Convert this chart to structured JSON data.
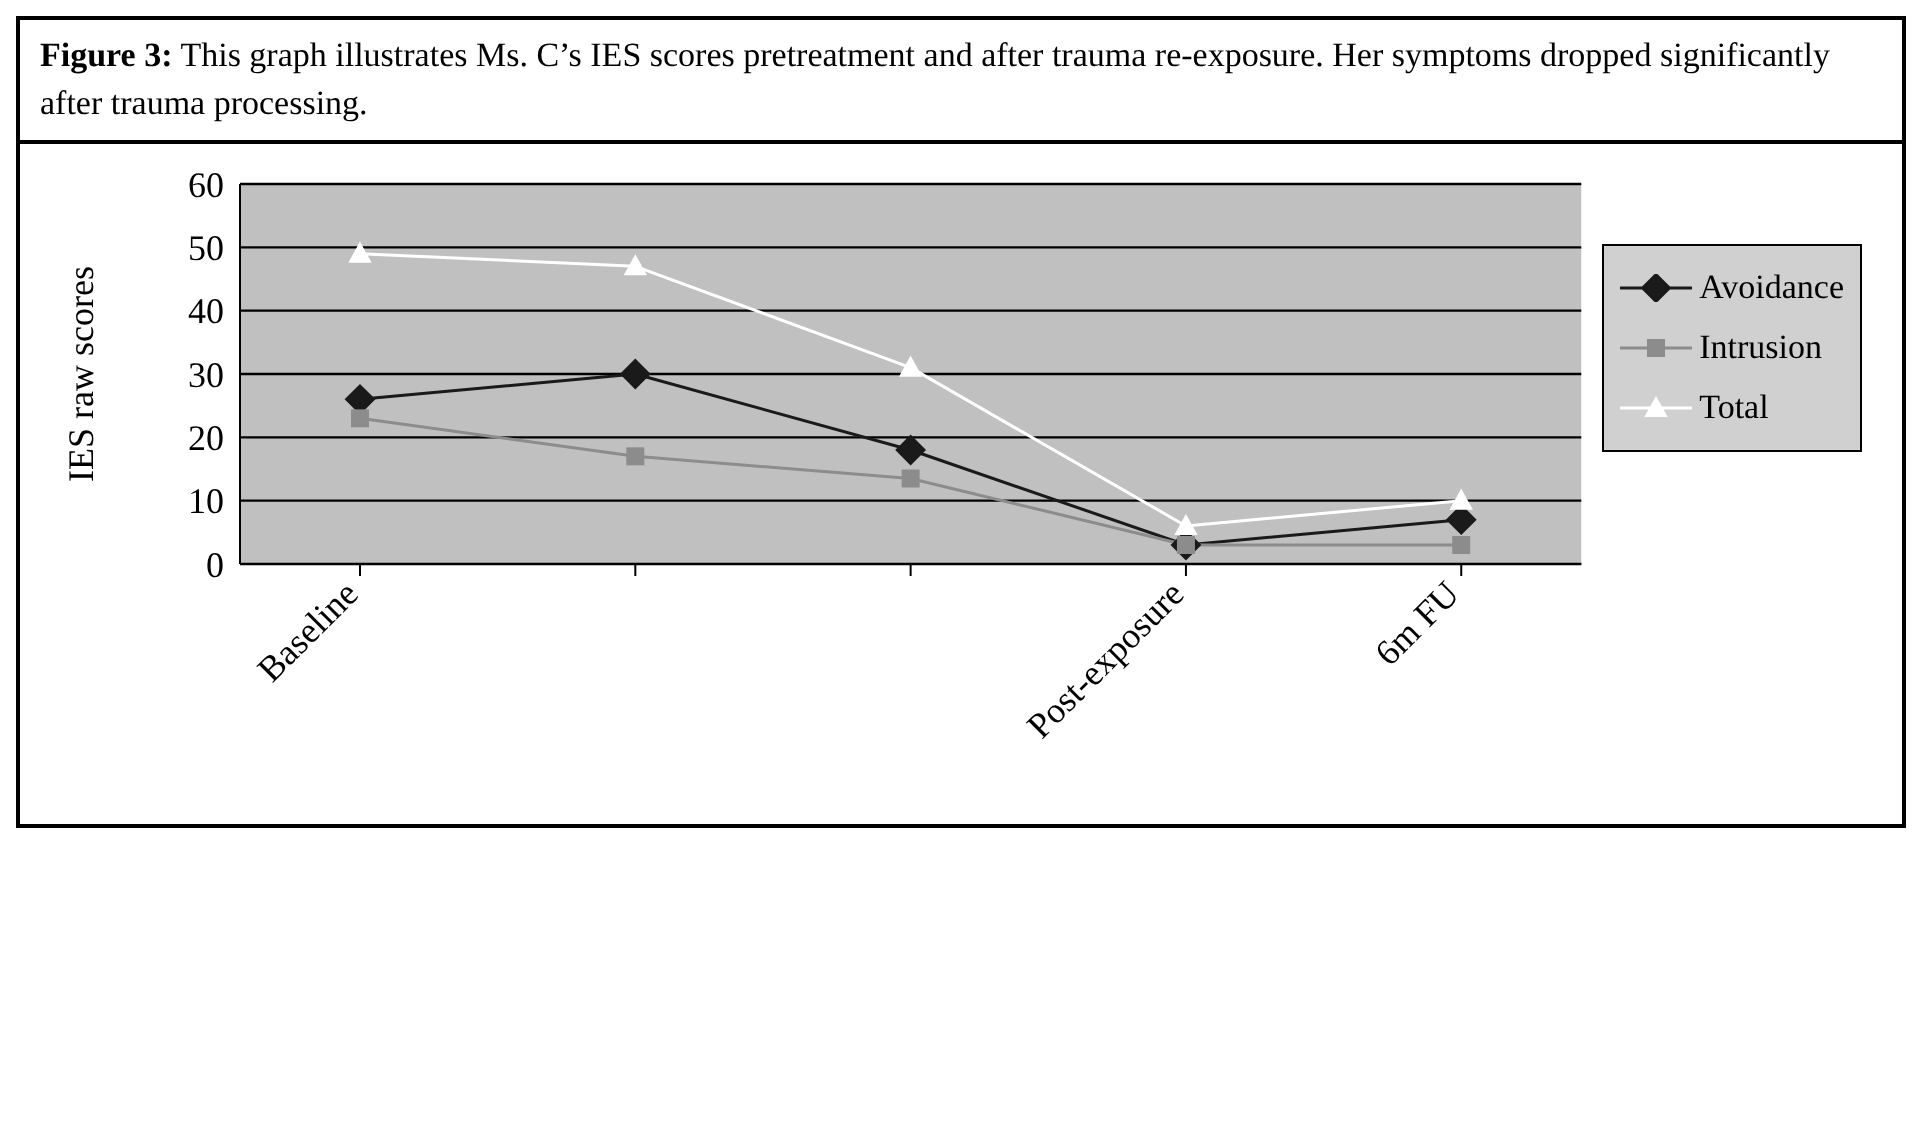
{
  "chart_data": {
    "type": "line",
    "title": "Figure 3: This graph illustrates Ms. C’s IES scores pretreatment and after trauma re-exposure. Her symptoms dropped significantly after trauma processing.",
    "ylabel": "IES raw scores",
    "categories": [
      "Baseline",
      null,
      null,
      "Post-exposure",
      "6m FU"
    ],
    "series": [
      {
        "name": "Avoidance",
        "color": "#1a1a1a",
        "marker": "diamond",
        "values": [
          26,
          30,
          18,
          3,
          7
        ]
      },
      {
        "name": "Intrusion",
        "color": "#8c8c8c",
        "marker": "square",
        "values": [
          23,
          17,
          13.5,
          3,
          3
        ]
      },
      {
        "name": "Total",
        "color": "#ffffff",
        "marker": "triangle",
        "values": [
          49,
          47,
          31,
          6,
          10
        ]
      }
    ],
    "ylim": [
      0,
      60
    ],
    "yticks": [
      0,
      10,
      20,
      30,
      40,
      50,
      60
    ],
    "grid": "y",
    "legend": "right"
  }
}
